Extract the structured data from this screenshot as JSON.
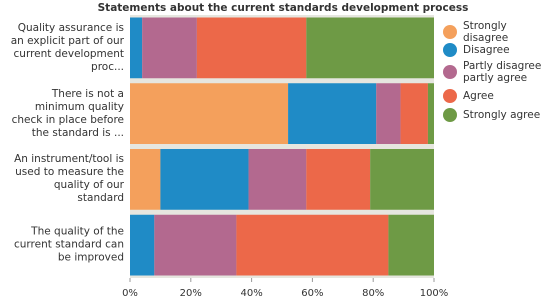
{
  "chart_data": {
    "type": "stacked-bar-horizontal",
    "title": "Statements about the current standards development process",
    "categories": [
      "Quality assurance is an explicit part of our current development proc...",
      "There is not a minimum quality check in place before the standard is ...",
      "An instrument/tool is used to measure the quality of our standard",
      "The quality of the current standard can be improved"
    ],
    "series": [
      {
        "name": "Strongly disagree",
        "color": "#f4a05c",
        "values": [
          0,
          52,
          10,
          0
        ]
      },
      {
        "name": "Disagree",
        "color": "#1f8bc6",
        "values": [
          4,
          29,
          29,
          8
        ]
      },
      {
        "name": "Partly disagree partly agree",
        "color": "#b3698f",
        "values": [
          18,
          8,
          19,
          27
        ]
      },
      {
        "name": "Agree",
        "color": "#ec6849",
        "values": [
          36,
          9,
          21,
          50
        ]
      },
      {
        "name": "Strongly agree",
        "color": "#6e9a45",
        "values": [
          42,
          2,
          21,
          15
        ]
      }
    ],
    "xlim": [
      0,
      100
    ],
    "xticks": [
      {
        "value": 0,
        "label": "0%"
      },
      {
        "value": 20,
        "label": "20%"
      },
      {
        "value": 40,
        "label": "40%"
      },
      {
        "value": 60,
        "label": "60%"
      },
      {
        "value": 80,
        "label": "80%"
      },
      {
        "value": 100,
        "label": "100%"
      }
    ]
  }
}
